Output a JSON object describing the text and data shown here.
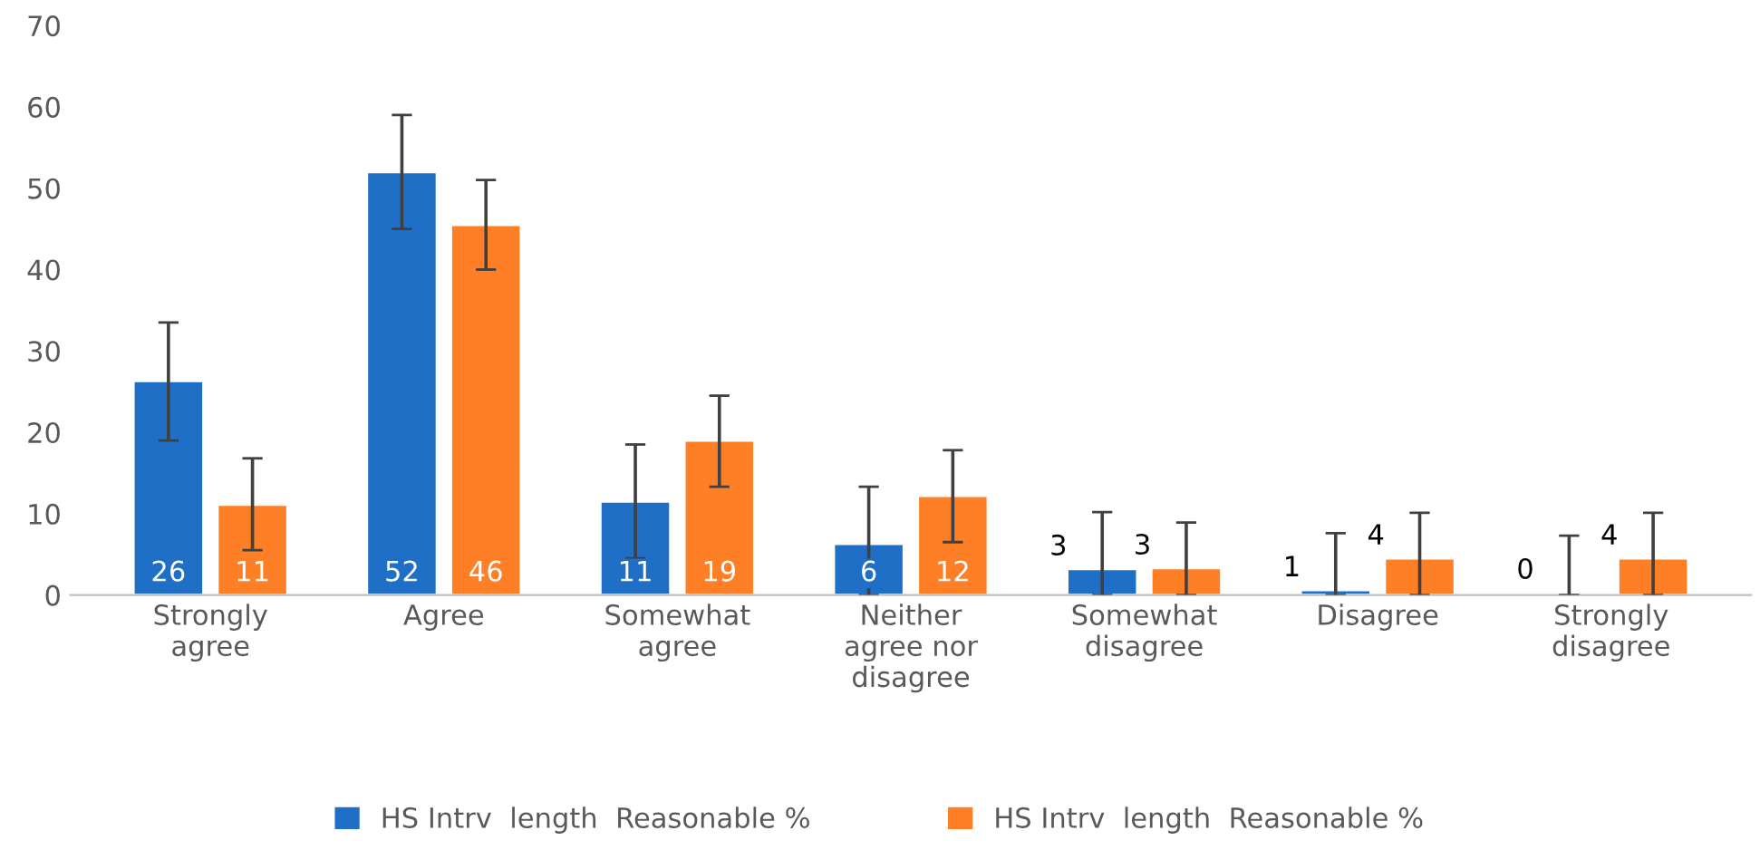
{
  "chart_data": {
    "type": "bar",
    "categories": [
      "Strongly\nagree",
      "Agree",
      "Somewhat\nagree",
      "Neither\nagree nor\ndisagree",
      "Somewhat\ndisagree",
      "Disagree",
      "Strongly\ndisagree"
    ],
    "series": [
      {
        "name": "HS Intrv  length  Reasonable %",
        "color": "#1f6fc6",
        "values": [
          26.3,
          52,
          11.5,
          6.3,
          3.2,
          0.6,
          0.3
        ],
        "value_labels": [
          "26",
          "52",
          "11",
          "6",
          "3",
          "1",
          "0"
        ],
        "errors": [
          [
            19,
            33.5
          ],
          [
            45,
            59
          ],
          [
            4.5,
            18.5
          ],
          [
            0,
            13.3
          ],
          [
            0,
            10.2
          ],
          [
            0,
            7.6
          ],
          [
            0,
            7.3
          ]
        ]
      },
      {
        "name": "HS Intrv  length  Reasonable %",
        "color": "#ff7f27",
        "values": [
          11.1,
          45.5,
          19,
          12.2,
          3.3,
          4.5,
          4.5
        ],
        "value_labels": [
          "11",
          "46",
          "19",
          "12",
          "3",
          "4",
          "4"
        ],
        "errors": [
          [
            5.5,
            16.8
          ],
          [
            40,
            51
          ],
          [
            13.3,
            24.5
          ],
          [
            6.5,
            17.8
          ],
          [
            0,
            8.9
          ],
          [
            0,
            10.1
          ],
          [
            0,
            10.1
          ]
        ]
      }
    ],
    "ylim": [
      0,
      70
    ],
    "yticks": [
      0,
      10,
      20,
      30,
      40,
      50,
      60,
      70
    ],
    "grid": false,
    "legend": "bottom"
  }
}
